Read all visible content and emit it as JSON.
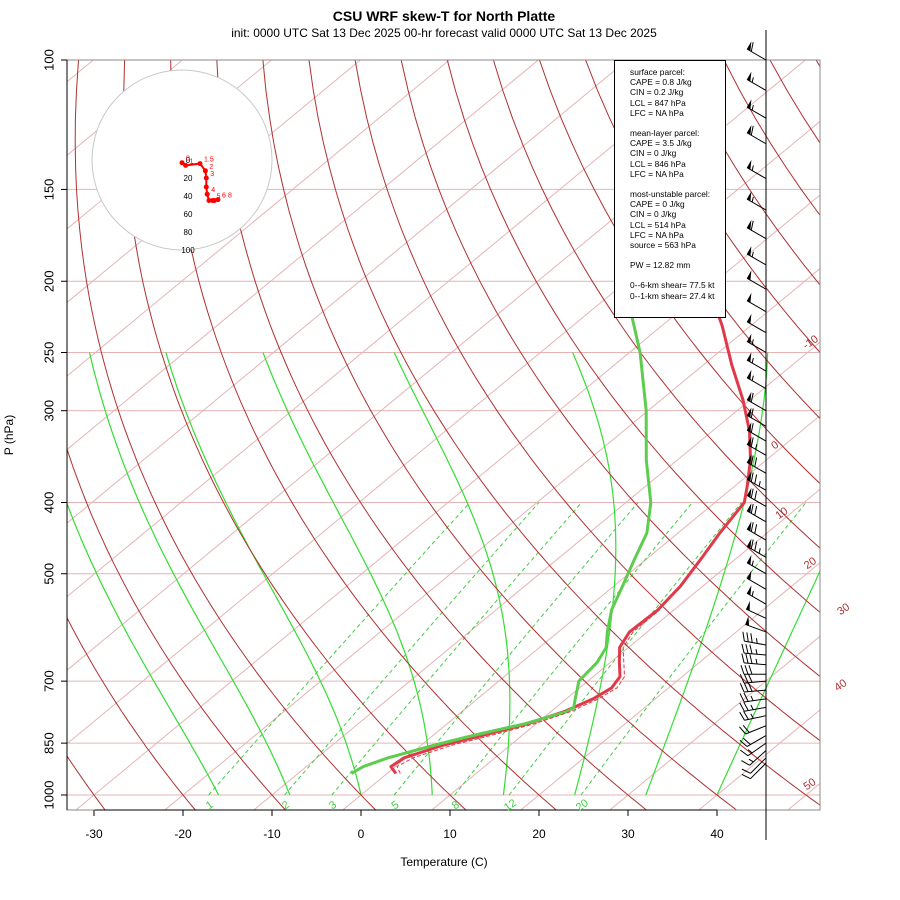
{
  "title": "CSU WRF skew-T for North Platte",
  "subtitle": "init: 0000 UTC Sat 13 Dec 2025    00-hr forecast valid 0000 UTC Sat 13 Dec 2025",
  "colors": {
    "temperature": "#e03a4a",
    "dewpoint": "#5ecc4e",
    "dry_adiabat": "#b03030",
    "moist_adiabat": "#33dd33",
    "isotherm": "#e6b4b4",
    "mixing_ratio": "#44cc44",
    "hodograph": "#ff0000"
  },
  "chart_data": {
    "type": "line",
    "xlabel": "Temperature (C)",
    "ylabel": "P (hPa)",
    "xlim": [
      -33,
      45
    ],
    "ylim": [
      1050,
      100
    ],
    "y_scale": "log",
    "x_ticks": [
      -30,
      -20,
      -10,
      0,
      10,
      20,
      30,
      40
    ],
    "y_ticks": [
      100,
      150,
      200,
      250,
      300,
      400,
      500,
      700,
      850,
      1000
    ],
    "isotherm_labels": [
      -10,
      0,
      10,
      20,
      30,
      40,
      50
    ],
    "mixing_ratio_labels": [
      1,
      2,
      3,
      5,
      8,
      12,
      20
    ],
    "series": [
      {
        "key": "temperature",
        "pressure": [
          935,
          915,
          890,
          855,
          830,
          800,
          770,
          740,
          715,
          690,
          660,
          630,
          600,
          560,
          520,
          480,
          440,
          400,
          380,
          350,
          320,
          290,
          260,
          230,
          210,
          195,
          180,
          165,
          150,
          130,
          110
        ],
        "values": [
          1,
          -0.5,
          -0.2,
          2.5,
          5.5,
          9,
          11.5,
          13,
          13.6,
          13,
          11,
          9,
          8,
          8.2,
          7.5,
          6.2,
          4.7,
          3.3,
          1.4,
          -1.8,
          -5.8,
          -10.8,
          -16.8,
          -23.2,
          -28.3,
          -33.2,
          -39.9,
          -45.7,
          -49.4,
          -53.5,
          -58
        ]
      },
      {
        "key": "dewpoint",
        "pressure": [
          935,
          915,
          890,
          855,
          830,
          800,
          770,
          760,
          740,
          700,
          660,
          630,
          600,
          560,
          520,
          480,
          440,
          400,
          350,
          300,
          250,
          220,
          200,
          190
        ],
        "values": [
          -4,
          -3.6,
          -2,
          1.5,
          4.5,
          8.7,
          11.8,
          12,
          11,
          9,
          8.5,
          7.5,
          5.5,
          3,
          1,
          -1.2,
          -3.5,
          -7.2,
          -13.5,
          -20.2,
          -28.8,
          -35.4,
          -40.5,
          -43.2
        ]
      },
      {
        "key": "virtual_temperature",
        "pressure": [
          935,
          915,
          890,
          855,
          830,
          800,
          770,
          740,
          715,
          690,
          660,
          630,
          600,
          560
        ],
        "values": [
          1.5,
          0.2,
          0.8,
          3.5,
          6.5,
          9.8,
          12.2,
          13.6,
          14.2,
          13.5,
          11.5,
          9.4,
          8.4,
          8.4
        ]
      }
    ],
    "hodograph": {
      "rings": [
        20,
        40,
        60,
        80,
        100
      ],
      "points_u": [
        0,
        4,
        20,
        26,
        27,
        27,
        28,
        30,
        34,
        36,
        40
      ],
      "points_v": [
        -3,
        -6,
        -4,
        -12,
        -20,
        -30,
        -38,
        -45,
        -45,
        -45,
        -44
      ],
      "point_labels": [
        "0",
        "1",
        "1.5",
        "2",
        "3",
        "4",
        "5",
        "6",
        "8"
      ]
    },
    "wind_barbs": {
      "pressure": [
        100,
        110,
        120,
        130,
        145,
        160,
        175,
        190,
        205,
        220,
        235,
        250,
        265,
        280,
        300,
        315,
        330,
        345,
        365,
        385,
        405,
        425,
        450,
        475,
        500,
        525,
        550,
        575,
        600,
        625,
        645,
        665,
        685,
        700,
        720,
        740,
        760,
        780,
        805,
        830,
        850,
        870,
        890,
        905
      ],
      "speed_kt": [
        60,
        55,
        55,
        60,
        55,
        55,
        60,
        55,
        50,
        50,
        50,
        55,
        55,
        55,
        60,
        60,
        60,
        65,
        70,
        75,
        70,
        70,
        70,
        75,
        55,
        50,
        55,
        50,
        50,
        35,
        35,
        35,
        30,
        30,
        30,
        25,
        25,
        25,
        20,
        20,
        15,
        15,
        10,
        10
      ],
      "direction_deg": [
        300,
        300,
        300,
        300,
        300,
        300,
        300,
        300,
        300,
        300,
        300,
        300,
        300,
        300,
        300,
        300,
        300,
        300,
        300,
        300,
        300,
        300,
        300,
        300,
        300,
        300,
        300,
        295,
        290,
        280,
        275,
        275,
        270,
        265,
        265,
        262,
        260,
        258,
        248,
        240,
        235,
        228,
        225,
        225
      ]
    }
  },
  "params": {
    "surface": [
      "surface parcel:",
      "CAPE = 0.8 J/kg",
      "CIN = 0.2 J/kg",
      "LCL = 847 hPa",
      "LFC = NA hPa"
    ],
    "mean_layer": [
      "mean-layer parcel:",
      "CAPE = 3.5 J/kg",
      "CIN = 0 J/kg",
      "LCL = 846 hPa",
      "LFC = NA hPa"
    ],
    "most_unstable": [
      "most-unstable parcel:",
      "CAPE = 0 J/kg",
      "CIN = 0 J/kg",
      "LCL = 514 hPa",
      "LFC = NA hPa",
      "source = 563 hPa"
    ],
    "pw": "PW =  12.82 mm",
    "shear": [
      "0--6-km shear= 77.5 kt",
      "0--1-km shear= 27.4 kt"
    ]
  }
}
